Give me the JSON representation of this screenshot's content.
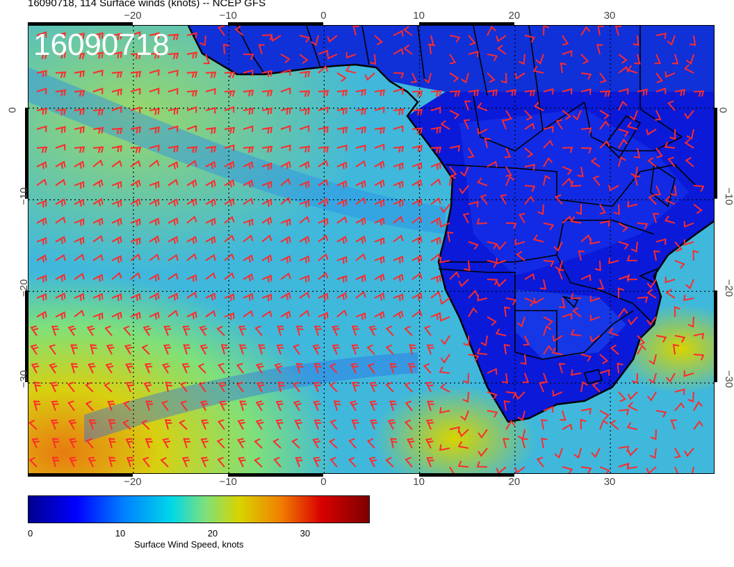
{
  "title": "16090718, 114 Surface winds (knots) -- NCEP GFS",
  "stamp": "16090718",
  "map": {
    "lon_range": [
      -31,
      41
    ],
    "lat_range": [
      -40,
      9
    ],
    "lon_ticks": [
      "−20",
      "−10",
      "0",
      "10",
      "20",
      "30"
    ],
    "lon_tick_values": [
      -20,
      -10,
      0,
      10,
      20,
      30
    ],
    "lat_ticks": [
      "0",
      "−10",
      "−20",
      "−30"
    ],
    "lat_tick_values": [
      0,
      -10,
      -20,
      -30
    ],
    "coast_color": "#000000",
    "barb_color": "#ff2a2a",
    "ocean_color": "#33b8d8",
    "land_color": "#0a1ad8"
  },
  "colorbar": {
    "labels": [
      "0",
      "10",
      "20",
      "30"
    ],
    "label_values": [
      0,
      10,
      20,
      30
    ],
    "max": 37,
    "title": "Surface Wind Speed, knots",
    "colors": [
      "#00008f",
      "#0000ff",
      "#0080ff",
      "#00d8e8",
      "#7fe07a",
      "#d8d400",
      "#f08000",
      "#d80000",
      "#7f0000"
    ]
  }
}
